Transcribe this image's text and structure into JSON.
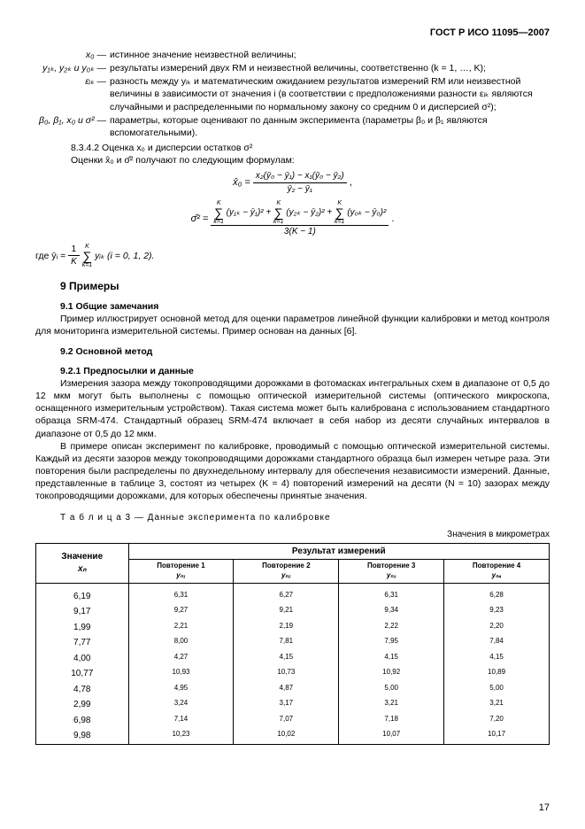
{
  "header": {
    "doc_id": "ГОСТ Р ИСО 11095—2007"
  },
  "defs": {
    "x0_sym": "x₀ —",
    "x0_txt": "истинное значение неизвестной величины;",
    "y_sym": "y₁ₖ, y₂ₖ и y₀ₖ —",
    "y_txt": "результаты измерений двух RM и неизвестной величины, соответственно (k = 1, …, K);",
    "eps_sym": "εᵢₖ —",
    "eps_txt": "разность между yᵢₖ и математическим ожиданием результатов измерений RM или неизвестной величины в зависимости от значения i (в соответствии с предположениями разности εᵢₖ являются случайными и распределенными по нормальному закону со средним 0 и дисперсией σ²);",
    "beta_sym": "β₀, β₁, x₀ и σ² —",
    "beta_txt": "параметры, которые оценивают по данным эксперимента (параметры β₀ и β₁ являются вспомогательными)."
  },
  "sec834": {
    "clause_title": "8.3.4.2  Оценка x₀ и дисперсии остатков σ²",
    "lead": "Оценки x̂₀ и σ̂² получают по следующим формулам:",
    "where_label": "где ȳᵢ = ",
    "where_tail_pre": " yᵢₖ  (i = 0, 1, 2).",
    "sum_top": "K",
    "sum_bot": "k=1",
    "frac_1K": "1/K",
    "f1_num": "x₂(ȳ₀ − ȳ₁) − x₁(ȳ₀ − ȳ₂)",
    "f1_den": "ȳ₂ − ȳ₁",
    "f1_lhs": "x̂₀ = ",
    "f1_tail": " ,",
    "f2_lhs": "σ̂² = ",
    "f2_num_a": "(y₁ₖ − ȳ₁)² + ",
    "f2_num_b": "(y₂ₖ − ȳ₂)² + ",
    "f2_num_c": "(y₀ₖ − ȳ₀)²",
    "f2_den": "3(K − 1)",
    "f2_tail": " ."
  },
  "sec9": {
    "title": "9  Примеры",
    "s91_title": "9.1  Общие замечания",
    "s91_text": "Пример иллюстрирует основной метод для оценки параметров линейной функции калибровки и метод контроля для мониторинга измерительной системы. Пример основан на данных [6].",
    "s92_title": "9.2  Основной метод",
    "s921_title": "9.2.1  Предпосылки и данные",
    "p1": "Измерения зазора между токопроводящими дорожками в фотомасках интегральных схем в диапазоне от 0,5 до 12 мкм могут быть выполнены с помощью оптической измерительной системы (оптического микроскопа, оснащенного измерительным устройством). Такая система может быть калибрована с использованием стандартного образца SRM-474. Стандартный образец SRM-474 включает в себя набор из десяти случайных интервалов в диапазоне от 0,5 до 12 мкм.",
    "p2": "В примере описан эксперимент по калибровке, проводимый с помощью оптической измерительной системы. Каждый из десяти зазоров между токопроводящими дорожками стандартного образца был измерен четыре раза. Эти повторения были распределены по двухнедельному интервалу для обеспечения независимости измерений. Данные, представленные в таблице 3, состоят из четырех (K = 4) повторений измерений на десяти (N = 10) зазорах между токопроводящими дорожками, для которых обеспечены принятые значения."
  },
  "table3": {
    "caption": "Т а б л и ц а   3 — Данные эксперимента по калибровке",
    "units": "Значения в микрометрах",
    "head_value": "Значение",
    "head_xn": "xₙ",
    "head_results": "Результат измерений",
    "rep_labels": [
      "Повторение 1",
      "Повторение 2",
      "Повторение 3",
      "Повторение 4"
    ],
    "rep_subs": [
      "yₙ₁",
      "yₙ₂",
      "yₙ₃",
      "yₙ₄"
    ],
    "rows": [
      {
        "x": "6,19",
        "y": [
          "6,31",
          "6,27",
          "6,31",
          "6,28"
        ]
      },
      {
        "x": "9,17",
        "y": [
          "9,27",
          "9,21",
          "9,34",
          "9,23"
        ]
      },
      {
        "x": "1,99",
        "y": [
          "2,21",
          "2,19",
          "2,22",
          "2,20"
        ]
      },
      {
        "x": "7,77",
        "y": [
          "8,00",
          "7,81",
          "7,95",
          "7,84"
        ]
      },
      {
        "x": "4,00",
        "y": [
          "4,27",
          "4,15",
          "4,15",
          "4,15"
        ]
      },
      {
        "x": "10,77",
        "y": [
          "10,93",
          "10,73",
          "10,92",
          "10,89"
        ]
      },
      {
        "x": "4,78",
        "y": [
          "4,95",
          "4,87",
          "5,00",
          "5,00"
        ]
      },
      {
        "x": "2,99",
        "y": [
          "3,24",
          "3,17",
          "3,21",
          "3,21"
        ]
      },
      {
        "x": "6,98",
        "y": [
          "7,14",
          "7,07",
          "7,18",
          "7,20"
        ]
      },
      {
        "x": "9,98",
        "y": [
          "10,23",
          "10,02",
          "10,07",
          "10,17"
        ]
      }
    ]
  },
  "page_num": "17"
}
